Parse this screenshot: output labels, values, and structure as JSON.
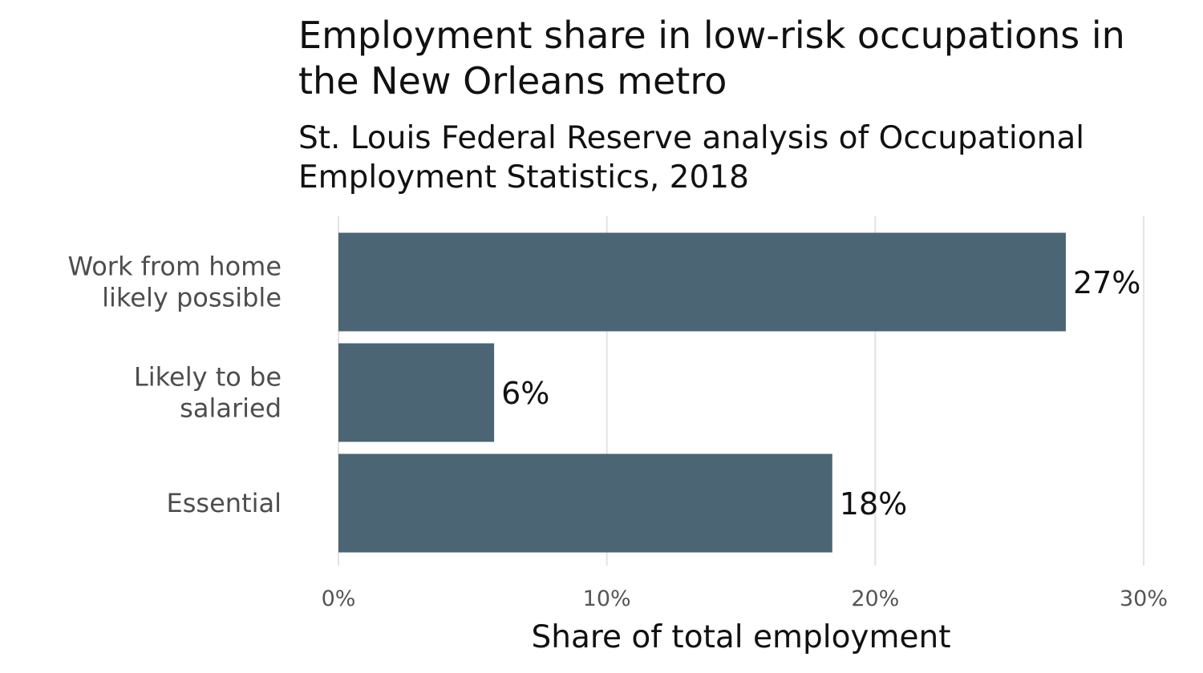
{
  "chart_data": {
    "type": "bar",
    "orientation": "horizontal",
    "title": "Employment share in low-risk occupations in the New Orleans metro",
    "subtitle": "St. Louis Federal Reserve analysis of Occupational Employment Statistics, 2018",
    "xlabel": "Share of total employment",
    "ylabel": "",
    "categories": [
      [
        "Work from home",
        "likely possible"
      ],
      [
        "Likely to be",
        "salaried"
      ],
      [
        "Essential"
      ]
    ],
    "values": [
      27.1,
      5.8,
      18.4
    ],
    "data_labels": [
      "27%",
      "6%",
      "18%"
    ],
    "xlim": [
      0,
      30
    ],
    "xticks": [
      0,
      10,
      20,
      30
    ],
    "xtick_labels": [
      "0%",
      "10%",
      "20%",
      "30%"
    ],
    "grid": true,
    "legend": "none",
    "bar_color": "#4b6575",
    "grid_color": "#e3e3e3"
  }
}
